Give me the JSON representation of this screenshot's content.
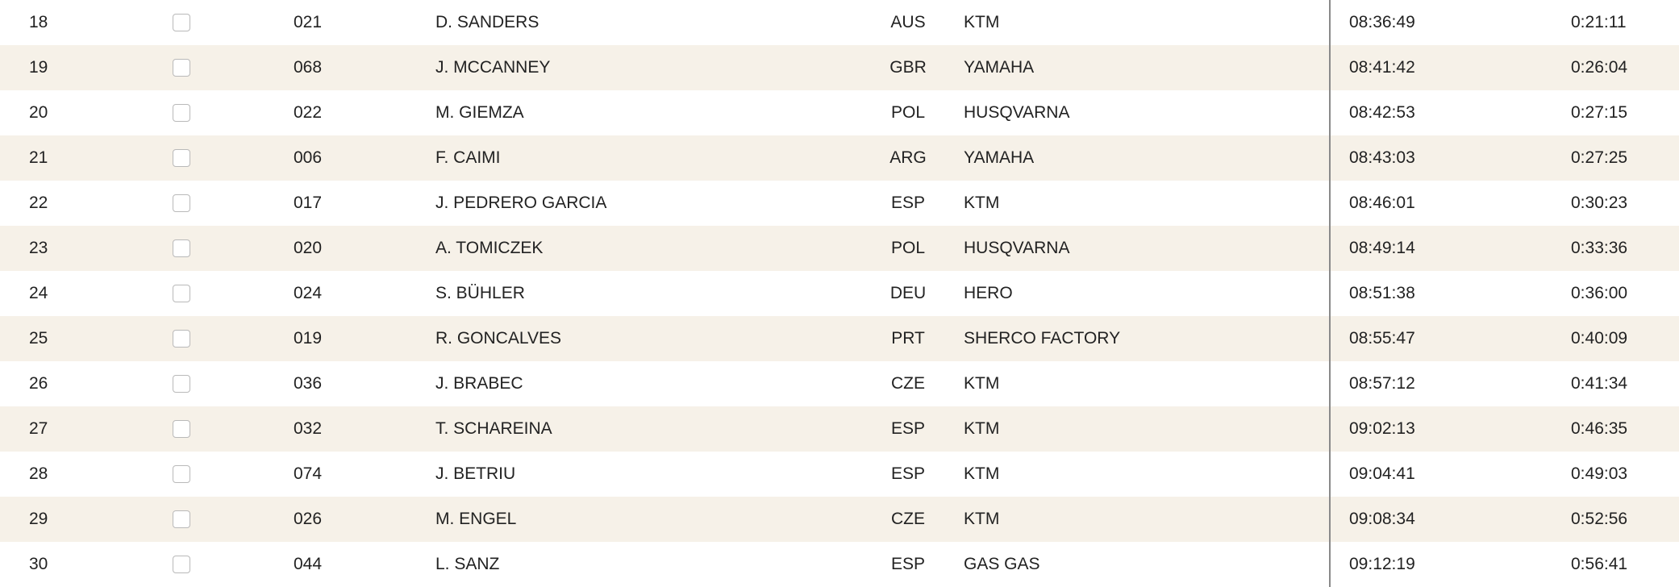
{
  "table": {
    "rows": [
      [
        "18",
        "021",
        "D. SANDERS",
        "AUS",
        "KTM",
        "08:36:49",
        "0:21:11"
      ],
      [
        "19",
        "068",
        "J. MCCANNEY",
        "GBR",
        "YAMAHA",
        "08:41:42",
        "0:26:04"
      ],
      [
        "20",
        "022",
        "M. GIEMZA",
        "POL",
        "HUSQVARNA",
        "08:42:53",
        "0:27:15"
      ],
      [
        "21",
        "006",
        "F. CAIMI",
        "ARG",
        "YAMAHA",
        "08:43:03",
        "0:27:25"
      ],
      [
        "22",
        "017",
        "J. PEDRERO GARCIA",
        "ESP",
        "KTM",
        "08:46:01",
        "0:30:23"
      ],
      [
        "23",
        "020",
        "A. TOMICZEK",
        "POL",
        "HUSQVARNA",
        "08:49:14",
        "0:33:36"
      ],
      [
        "24",
        "024",
        "S. BÜHLER",
        "DEU",
        "HERO",
        "08:51:38",
        "0:36:00"
      ],
      [
        "25",
        "019",
        "R. GONCALVES",
        "PRT",
        "SHERCO FACTORY",
        "08:55:47",
        "0:40:09"
      ],
      [
        "26",
        "036",
        "J. BRABEC",
        "CZE",
        "KTM",
        "08:57:12",
        "0:41:34"
      ],
      [
        "27",
        "032",
        "T. SCHAREINA",
        "ESP",
        "KTM",
        "09:02:13",
        "0:46:35"
      ],
      [
        "28",
        "074",
        "J. BETRIU",
        "ESP",
        "KTM",
        "09:04:41",
        "0:49:03"
      ],
      [
        "29",
        "026",
        "M. ENGEL",
        "CZE",
        "KTM",
        "09:08:34",
        "0:52:56"
      ],
      [
        "30",
        "044",
        "L. SANZ",
        "ESP",
        "GAS GAS",
        "09:12:19",
        "0:56:41"
      ]
    ]
  }
}
